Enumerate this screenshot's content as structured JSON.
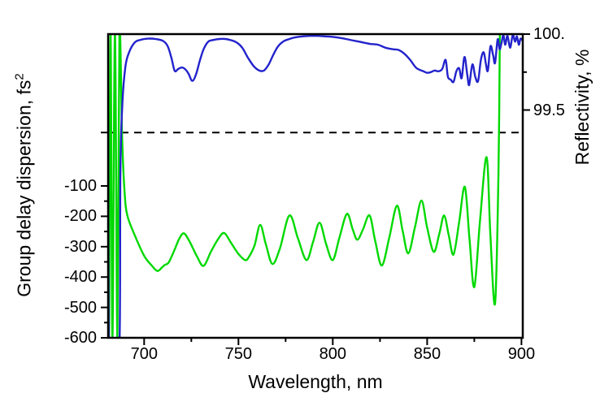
{
  "figure": {
    "xlabel": "Wavelength, nm",
    "ylabel_left_base": "Group delay dispersion, fs",
    "ylabel_left_sup": "2",
    "ylabel_right": "Reflectivity, %"
  },
  "chart_data": {
    "type": "line",
    "title": "",
    "xlabel": "Wavelength, nm",
    "ylabel_left": "Group delay dispersion, fs²",
    "ylabel_right": "Reflectivity, %",
    "grid": false,
    "legend": "none",
    "x_range": [
      680.9,
      900.7
    ],
    "y_left_range": [
      -600,
      400
    ],
    "y_right_range": [
      98.0,
      100.0
    ],
    "x_ticks_major": [
      700,
      750,
      800,
      850,
      900
    ],
    "x_ticks_minor": [
      725,
      775,
      825,
      875
    ],
    "y_left_ticks_major": [
      -100,
      -200,
      -300,
      -400,
      -500,
      -600
    ],
    "y_left_ticks_minor": [
      -150,
      -250,
      -350,
      -450,
      -550
    ],
    "y_right_ticks_major": [
      {
        "value": 100.0,
        "label": "100."
      },
      {
        "value": 99.5,
        "label": "99.5"
      }
    ],
    "y_right_ticks_minor": [
      99.75
    ],
    "dashed_line": {
      "left_axis_value": 76,
      "right_axis_value": 99.35,
      "has_left_axis_tick": true,
      "color": "#000000"
    },
    "colors": {
      "gdd": "#00d900",
      "reflectivity": "#2323cc",
      "frame": "#000000"
    },
    "series": [
      {
        "name": "Group delay dispersion",
        "axis": "left",
        "color": "#00d900",
        "points": [
          [
            681.4,
            -600
          ],
          [
            682.2,
            400
          ],
          [
            683.2,
            -600
          ],
          [
            684.5,
            400
          ],
          [
            685.8,
            -600
          ],
          [
            686.9,
            400
          ],
          [
            688.3,
            60
          ],
          [
            689.5,
            -110
          ],
          [
            691,
            -195
          ],
          [
            695,
            -262
          ],
          [
            700,
            -330
          ],
          [
            704,
            -362
          ],
          [
            707,
            -380
          ],
          [
            709.5,
            -368
          ],
          [
            711,
            -360
          ],
          [
            713,
            -352
          ],
          [
            716,
            -312
          ],
          [
            718.5,
            -275
          ],
          [
            721,
            -256
          ],
          [
            724,
            -282
          ],
          [
            728,
            -332
          ],
          [
            731.5,
            -363
          ],
          [
            735.5,
            -315
          ],
          [
            739.5,
            -272
          ],
          [
            742.5,
            -255
          ],
          [
            746,
            -287
          ],
          [
            750,
            -324
          ],
          [
            753.5,
            -344
          ],
          [
            755.5,
            -334
          ],
          [
            758.5,
            -296
          ],
          [
            761.5,
            -228
          ],
          [
            764.5,
            -292
          ],
          [
            768,
            -357
          ],
          [
            772,
            -305
          ],
          [
            777,
            -197
          ],
          [
            781.5,
            -272
          ],
          [
            786,
            -344
          ],
          [
            789.5,
            -285
          ],
          [
            793,
            -221
          ],
          [
            796.5,
            -292
          ],
          [
            800,
            -344
          ],
          [
            803.5,
            -270
          ],
          [
            807.5,
            -192
          ],
          [
            810.5,
            -242
          ],
          [
            813,
            -277
          ],
          [
            816,
            -243
          ],
          [
            819.5,
            -197
          ],
          [
            822.5,
            -282
          ],
          [
            826,
            -362
          ],
          [
            830,
            -268
          ],
          [
            834,
            -165
          ],
          [
            837,
            -247
          ],
          [
            840,
            -322
          ],
          [
            843.5,
            -237
          ],
          [
            847,
            -148
          ],
          [
            850,
            -237
          ],
          [
            853.5,
            -317
          ],
          [
            856.5,
            -257
          ],
          [
            859,
            -197
          ],
          [
            861.5,
            -263
          ],
          [
            864,
            -326
          ],
          [
            867,
            -218
          ],
          [
            870,
            -103
          ],
          [
            872.5,
            -278
          ],
          [
            875,
            -433
          ],
          [
            878,
            -218
          ],
          [
            881.5,
            -5
          ],
          [
            883.5,
            -258
          ],
          [
            886,
            -487
          ],
          [
            887.8,
            -60
          ],
          [
            888.6,
            430
          ]
        ]
      },
      {
        "name": "Reflectivity",
        "axis": "right",
        "color": "#2323cc",
        "points": [
          [
            680.9,
            99.42
          ],
          [
            681.3,
            97.9
          ],
          [
            683,
            97.85
          ],
          [
            686.8,
            97.9
          ],
          [
            687.4,
            99.1
          ],
          [
            688.5,
            99.55
          ],
          [
            690,
            99.78
          ],
          [
            692,
            99.88
          ],
          [
            695,
            99.945
          ],
          [
            698,
            99.962
          ],
          [
            702,
            99.97
          ],
          [
            706,
            99.968
          ],
          [
            710,
            99.955
          ],
          [
            712.5,
            99.92
          ],
          [
            714.5,
            99.84
          ],
          [
            716.2,
            99.758
          ],
          [
            718,
            99.77
          ],
          [
            720,
            99.78
          ],
          [
            721.8,
            99.768
          ],
          [
            723.5,
            99.74
          ],
          [
            725.5,
            99.692
          ],
          [
            727.5,
            99.735
          ],
          [
            729.5,
            99.825
          ],
          [
            731.5,
            99.9
          ],
          [
            734,
            99.95
          ],
          [
            737,
            99.962
          ],
          [
            740,
            99.968
          ],
          [
            743,
            99.968
          ],
          [
            746,
            99.96
          ],
          [
            749,
            99.945
          ],
          [
            752,
            99.91
          ],
          [
            755,
            99.845
          ],
          [
            758,
            99.79
          ],
          [
            761,
            99.76
          ],
          [
            763.5,
            99.76
          ],
          [
            766,
            99.8
          ],
          [
            768.5,
            99.865
          ],
          [
            771,
            99.92
          ],
          [
            774,
            99.953
          ],
          [
            777,
            99.968
          ],
          [
            780,
            99.978
          ],
          [
            784,
            99.985
          ],
          [
            788,
            99.988
          ],
          [
            792,
            99.988
          ],
          [
            796,
            99.985
          ],
          [
            800,
            99.982
          ],
          [
            804,
            99.975
          ],
          [
            808,
            99.965
          ],
          [
            812,
            99.955
          ],
          [
            816,
            99.945
          ],
          [
            820,
            99.935
          ],
          [
            824,
            99.93
          ],
          [
            828,
            99.91
          ],
          [
            832,
            99.9
          ],
          [
            835,
            99.895
          ],
          [
            838,
            99.87
          ],
          [
            841,
            99.83
          ],
          [
            844,
            99.78
          ],
          [
            846,
            99.765
          ],
          [
            848,
            99.755
          ],
          [
            850,
            99.745
          ],
          [
            852,
            99.75
          ],
          [
            854,
            99.76
          ],
          [
            856,
            99.755
          ],
          [
            858,
            99.77
          ],
          [
            859.8,
            99.83
          ],
          [
            861,
            99.72
          ],
          [
            862.5,
            99.7
          ],
          [
            864,
            99.685
          ],
          [
            865.5,
            99.755
          ],
          [
            867,
            99.775
          ],
          [
            868.3,
            99.71
          ],
          [
            869.8,
            99.85
          ],
          [
            871.3,
            99.73
          ],
          [
            872.3,
            99.665
          ],
          [
            874,
            99.8
          ],
          [
            875.5,
            99.72
          ],
          [
            877,
            99.69
          ],
          [
            878.5,
            99.83
          ],
          [
            880,
            99.88
          ],
          [
            881.2,
            99.8
          ],
          [
            882.2,
            99.76
          ],
          [
            883.6,
            99.92
          ],
          [
            885,
            99.86
          ],
          [
            886,
            99.81
          ],
          [
            887.4,
            99.965
          ],
          [
            888.4,
            99.9
          ],
          [
            889.4,
            99.94
          ],
          [
            890.4,
            99.995
          ],
          [
            891.4,
            99.93
          ],
          [
            892.6,
            99.99
          ],
          [
            894,
            99.91
          ],
          [
            895.4,
            99.995
          ],
          [
            896.6,
            99.95
          ],
          [
            897.6,
            99.985
          ],
          [
            898.6,
            99.93
          ],
          [
            899.5,
            99.97
          ],
          [
            900.5,
            99.96
          ]
        ]
      }
    ]
  }
}
